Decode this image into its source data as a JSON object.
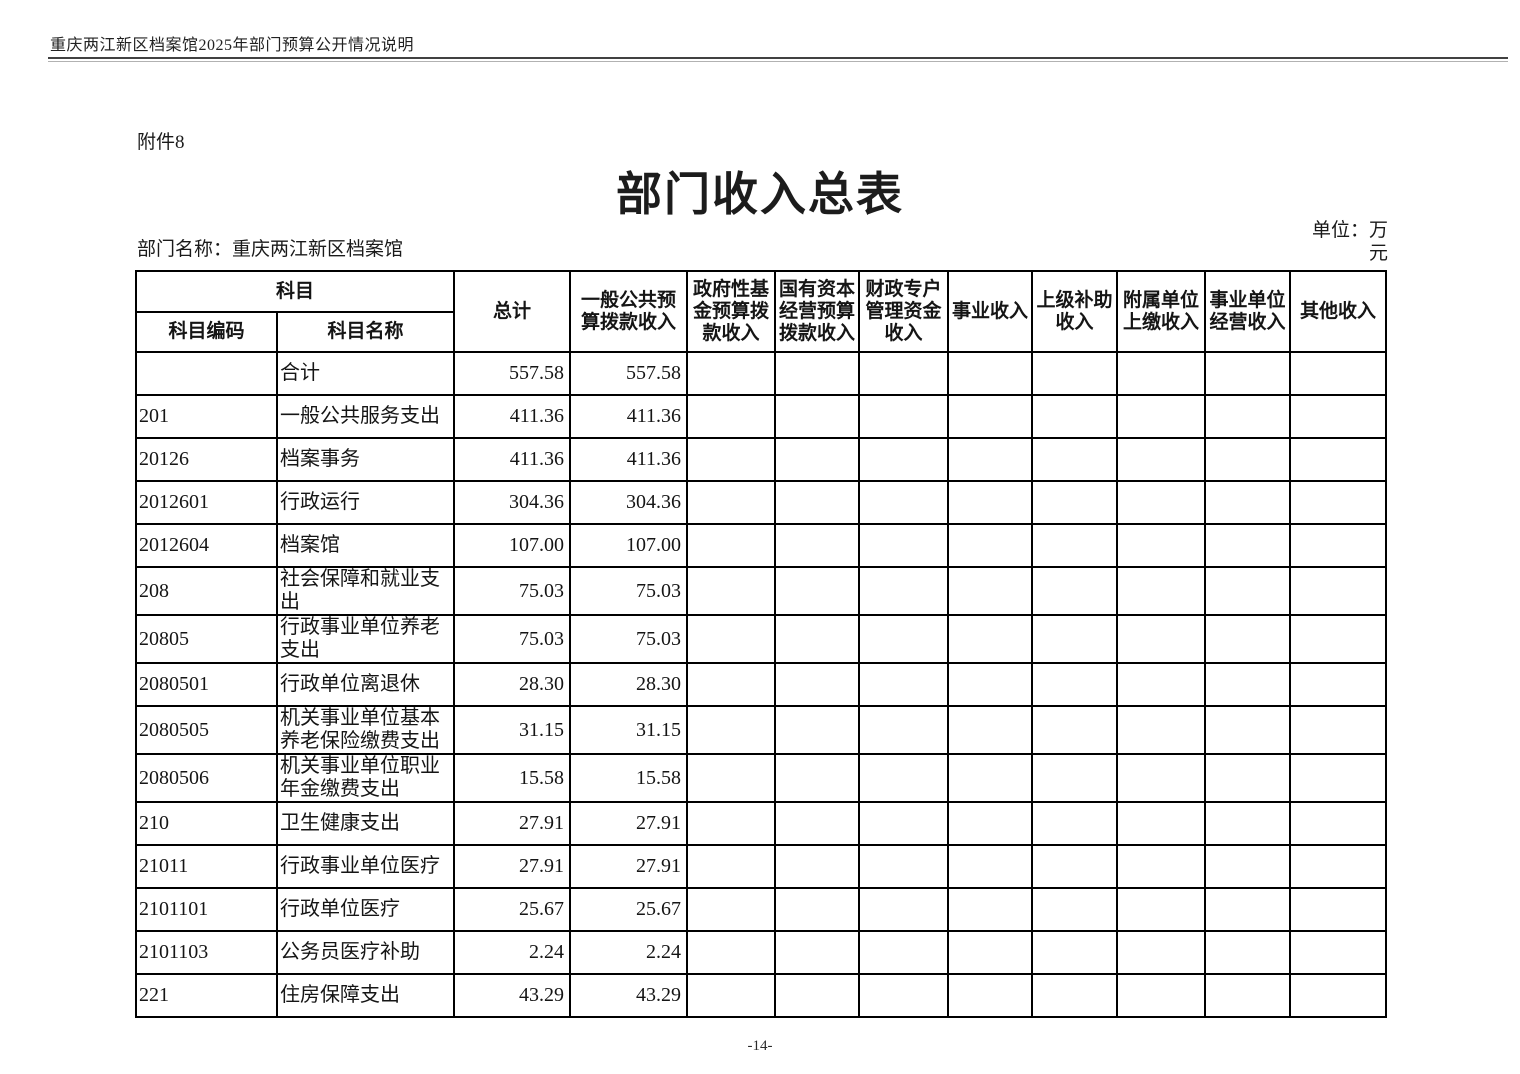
{
  "page": {
    "running_header": "重庆两江新区档案馆2025年部门预算公开情况说明",
    "attachment_label": "附件8",
    "title": "部门收入总表",
    "department_label": "部门名称：重庆两江新区档案馆",
    "unit_label": "单位：万元",
    "page_number": "-14-"
  },
  "table": {
    "header": {
      "subject_group": "科目",
      "subject_code": "科目编码",
      "subject_name": "科目名称",
      "columns": [
        "总计",
        "一般公共预算拨款收入",
        "政府性基金预算拨款收入",
        "国有资本经营预算拨款收入",
        "财政专户管理资金收入",
        "事业收入",
        "上级补助收入",
        "附属单位上缴收入",
        "事业单位经营收入",
        "其他收入"
      ]
    },
    "rows": [
      {
        "code": "",
        "name": "合计",
        "values": [
          "557.58",
          "557.58",
          "",
          "",
          "",
          "",
          "",
          "",
          "",
          ""
        ]
      },
      {
        "code": "201",
        "name": "一般公共服务支出",
        "values": [
          "411.36",
          "411.36",
          "",
          "",
          "",
          "",
          "",
          "",
          "",
          ""
        ]
      },
      {
        "code": "20126",
        "name": "档案事务",
        "values": [
          "411.36",
          "411.36",
          "",
          "",
          "",
          "",
          "",
          "",
          "",
          ""
        ]
      },
      {
        "code": "2012601",
        "name": "行政运行",
        "values": [
          "304.36",
          "304.36",
          "",
          "",
          "",
          "",
          "",
          "",
          "",
          ""
        ]
      },
      {
        "code": "2012604",
        "name": "档案馆",
        "values": [
          "107.00",
          "107.00",
          "",
          "",
          "",
          "",
          "",
          "",
          "",
          ""
        ]
      },
      {
        "code": "208",
        "name": "社会保障和就业支出",
        "values": [
          "75.03",
          "75.03",
          "",
          "",
          "",
          "",
          "",
          "",
          "",
          ""
        ]
      },
      {
        "code": "20805",
        "name": "行政事业单位养老支出",
        "values": [
          "75.03",
          "75.03",
          "",
          "",
          "",
          "",
          "",
          "",
          "",
          ""
        ]
      },
      {
        "code": "2080501",
        "name": "行政单位离退休",
        "values": [
          "28.30",
          "28.30",
          "",
          "",
          "",
          "",
          "",
          "",
          "",
          ""
        ]
      },
      {
        "code": "2080505",
        "name": "机关事业单位基本养老保险缴费支出",
        "values": [
          "31.15",
          "31.15",
          "",
          "",
          "",
          "",
          "",
          "",
          "",
          ""
        ]
      },
      {
        "code": "2080506",
        "name": "机关事业单位职业年金缴费支出",
        "values": [
          "15.58",
          "15.58",
          "",
          "",
          "",
          "",
          "",
          "",
          "",
          ""
        ]
      },
      {
        "code": "210",
        "name": "卫生健康支出",
        "values": [
          "27.91",
          "27.91",
          "",
          "",
          "",
          "",
          "",
          "",
          "",
          ""
        ]
      },
      {
        "code": "21011",
        "name": "行政事业单位医疗",
        "values": [
          "27.91",
          "27.91",
          "",
          "",
          "",
          "",
          "",
          "",
          "",
          ""
        ]
      },
      {
        "code": "2101101",
        "name": "行政单位医疗",
        "values": [
          "25.67",
          "25.67",
          "",
          "",
          "",
          "",
          "",
          "",
          "",
          ""
        ]
      },
      {
        "code": "2101103",
        "name": "公务员医疗补助",
        "values": [
          "2.24",
          "2.24",
          "",
          "",
          "",
          "",
          "",
          "",
          "",
          ""
        ]
      },
      {
        "code": "221",
        "name": "住房保障支出",
        "values": [
          "43.29",
          "43.29",
          "",
          "",
          "",
          "",
          "",
          "",
          "",
          ""
        ]
      }
    ]
  }
}
